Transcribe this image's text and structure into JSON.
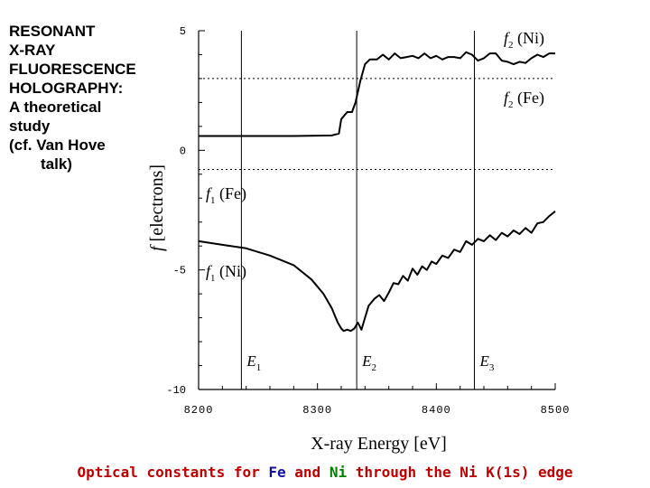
{
  "title_lines": [
    "RESONANT",
    "X-RAY",
    "FLUORESCENCE",
    "HOLOGRAPHY:",
    "A theoretical",
    "study",
    "(cf. Van Hove",
    "talk)"
  ],
  "caption": {
    "part1": "Optical constants for ",
    "fe": "Fe",
    "part2": " and ",
    "ni": "Ni",
    "part3": " through the Ni K(1s) edge"
  },
  "chart_data": {
    "type": "line",
    "xlabel": "X-ray Energy  [e",
    "xlabel_unit": "V]",
    "ylabel_symbol": "f",
    "ylabel": "[electrons]",
    "xlim": [
      8200,
      8500
    ],
    "ylim": [
      -10,
      5
    ],
    "x_ticks": [
      8200,
      8300,
      8400,
      8500
    ],
    "x_tick_labels": [
      "8200",
      "8300",
      "8400",
      "8500"
    ],
    "y_ticks": [
      -10,
      -5,
      0,
      5
    ],
    "y_tick_labels": [
      "-10",
      "-5",
      "0",
      "5"
    ],
    "grid": false,
    "edges": [
      {
        "label": "E",
        "sub": "1",
        "x": 8236
      },
      {
        "label": "E",
        "sub": "2",
        "x": 8333
      },
      {
        "label": "E",
        "sub": "3",
        "x": 8432
      }
    ],
    "series": [
      {
        "name": "f2 (Ni)",
        "label": "f",
        "sub": "2",
        "suffix": " (Ni)",
        "style": "solid",
        "x": [
          8200,
          8280,
          8312,
          8318,
          8320,
          8325,
          8329,
          8332,
          8336,
          8340,
          8344,
          8350,
          8355,
          8360,
          8365,
          8370,
          8375,
          8380,
          8385,
          8390,
          8395,
          8400,
          8405,
          8410,
          8415,
          8420,
          8425,
          8430,
          8435,
          8440,
          8445,
          8450,
          8455,
          8460,
          8465,
          8470,
          8475,
          8480,
          8485,
          8490,
          8495,
          8500
        ],
        "y": [
          0.6,
          0.6,
          0.62,
          0.7,
          1.3,
          1.6,
          1.6,
          2.0,
          2.9,
          3.6,
          3.8,
          3.8,
          4.0,
          3.8,
          4.05,
          3.85,
          3.9,
          3.95,
          3.85,
          4.05,
          3.85,
          3.95,
          3.8,
          3.9,
          3.9,
          3.85,
          4.1,
          4.0,
          3.75,
          3.85,
          4.05,
          4.05,
          3.75,
          3.7,
          3.6,
          3.7,
          3.65,
          3.85,
          4.0,
          3.9,
          4.05,
          4.05
        ]
      },
      {
        "name": "f2 (Fe)",
        "label": "f",
        "sub": "2",
        "suffix": " (Fe)",
        "style": "dotted",
        "x": [
          8200,
          8500
        ],
        "y": [
          3.0,
          3.0
        ]
      },
      {
        "name": "f1 (Fe)",
        "label": "f",
        "sub": "1",
        "suffix": " (Fe)",
        "style": "dotted",
        "x": [
          8200,
          8500
        ],
        "y": [
          -0.8,
          -0.8
        ]
      },
      {
        "name": "f1 (Ni)",
        "label": "f",
        "sub": "1",
        "suffix": " (Ni)",
        "style": "solid",
        "x": [
          8200,
          8220,
          8240,
          8260,
          8280,
          8295,
          8305,
          8312,
          8317,
          8320,
          8322,
          8325,
          8328,
          8331,
          8334,
          8337,
          8340,
          8343,
          8348,
          8352,
          8356,
          8360,
          8364,
          8368,
          8372,
          8376,
          8380,
          8384,
          8388,
          8392,
          8396,
          8400,
          8405,
          8410,
          8415,
          8420,
          8425,
          8430,
          8435,
          8440,
          8445,
          8450,
          8455,
          8460,
          8465,
          8470,
          8475,
          8480,
          8485,
          8490,
          8495,
          8500
        ],
        "y": [
          -3.8,
          -3.95,
          -4.1,
          -4.4,
          -4.8,
          -5.4,
          -6.0,
          -6.6,
          -7.2,
          -7.45,
          -7.55,
          -7.5,
          -7.55,
          -7.45,
          -7.2,
          -7.5,
          -7.0,
          -6.5,
          -6.2,
          -6.05,
          -6.3,
          -5.95,
          -5.55,
          -5.6,
          -5.25,
          -5.45,
          -4.95,
          -5.2,
          -4.85,
          -5.0,
          -4.65,
          -4.75,
          -4.4,
          -4.5,
          -4.15,
          -4.25,
          -3.8,
          -3.95,
          -3.7,
          -3.8,
          -3.55,
          -3.75,
          -3.45,
          -3.6,
          -3.35,
          -3.5,
          -3.25,
          -3.45,
          -3.05,
          -3.0,
          -2.75,
          -2.55
        ]
      }
    ]
  }
}
